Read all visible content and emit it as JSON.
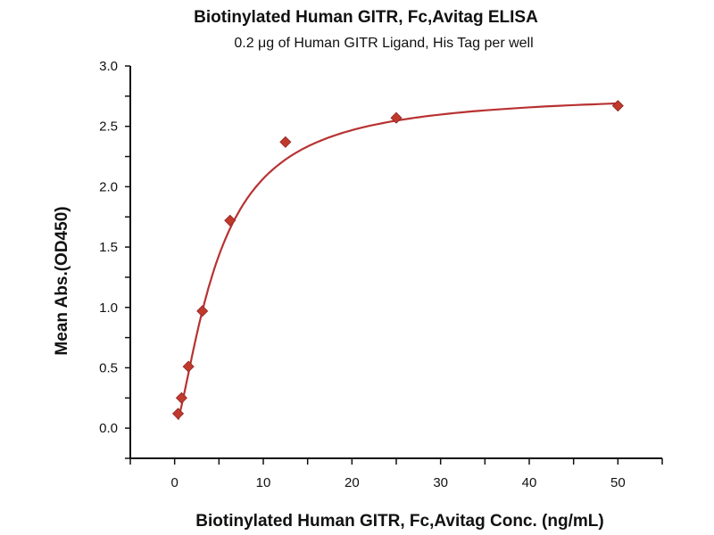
{
  "chart_data": {
    "type": "scatter",
    "title": "Biotinylated Human GITR, Fc,Avitag ELISA",
    "subtitle": "0.2 μg of Human GITR Ligand, His Tag per well",
    "xlabel": "Biotinylated Human GITR, Fc,Avitag Conc. (ng/mL)",
    "ylabel": "Mean Abs.(OD450)",
    "xlim": [
      -5,
      55
    ],
    "ylim": [
      -0.25,
      3.0
    ],
    "xticks": [
      "0",
      "10",
      "20",
      "30",
      "40",
      "50"
    ],
    "yticks": [
      "0.0",
      "0.5",
      "1.0",
      "1.5",
      "2.0",
      "2.5",
      "3.0"
    ],
    "grid": false,
    "color": "#c0392b",
    "series": [
      {
        "name": "data",
        "x": [
          0.39,
          0.78,
          1.56,
          3.125,
          6.25,
          12.5,
          25,
          50
        ],
        "y": [
          0.12,
          0.25,
          0.51,
          0.97,
          1.72,
          2.37,
          2.57,
          2.67
        ]
      }
    ],
    "fit": {
      "model": "4PL",
      "bottom": 0.0,
      "top": 2.78,
      "ec50": 4.8,
      "hill": 1.45
    }
  }
}
